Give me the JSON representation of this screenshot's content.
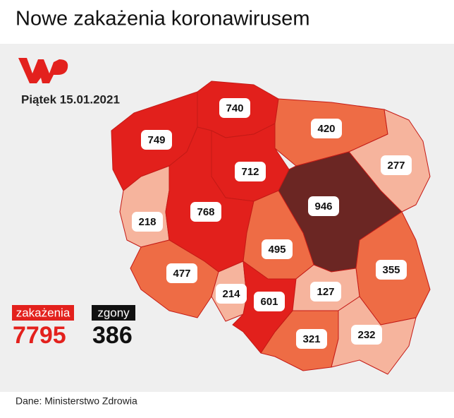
{
  "title": "Nowe zakażenia koronawirusem",
  "date": "Piątek 15.01.2021",
  "regions": [
    {
      "value": 749,
      "color": "#e2201c"
    },
    {
      "value": 740,
      "color": "#e2201c"
    },
    {
      "value": 420,
      "color": "#ee6c45"
    },
    {
      "value": 277,
      "color": "#f6b49d"
    },
    {
      "value": 712,
      "color": "#e2201c"
    },
    {
      "value": 218,
      "color": "#f6b49d"
    },
    {
      "value": 768,
      "color": "#e2201c"
    },
    {
      "value": 946,
      "color": "#6b2623"
    },
    {
      "value": 495,
      "color": "#ee6c45"
    },
    {
      "value": 355,
      "color": "#ee6c45"
    },
    {
      "value": 477,
      "color": "#ee6c45"
    },
    {
      "value": 214,
      "color": "#f6b49d"
    },
    {
      "value": 601,
      "color": "#e2201c"
    },
    {
      "value": 127,
      "color": "#f6b49d"
    },
    {
      "value": 321,
      "color": "#ee6c45"
    },
    {
      "value": 232,
      "color": "#f6b49d"
    }
  ],
  "totals": {
    "cases_label": "zakażenia",
    "cases": 7795,
    "deaths_label": "zgony",
    "deaths": 386
  },
  "source": "Dane: Ministerstwo Zdrowia"
}
